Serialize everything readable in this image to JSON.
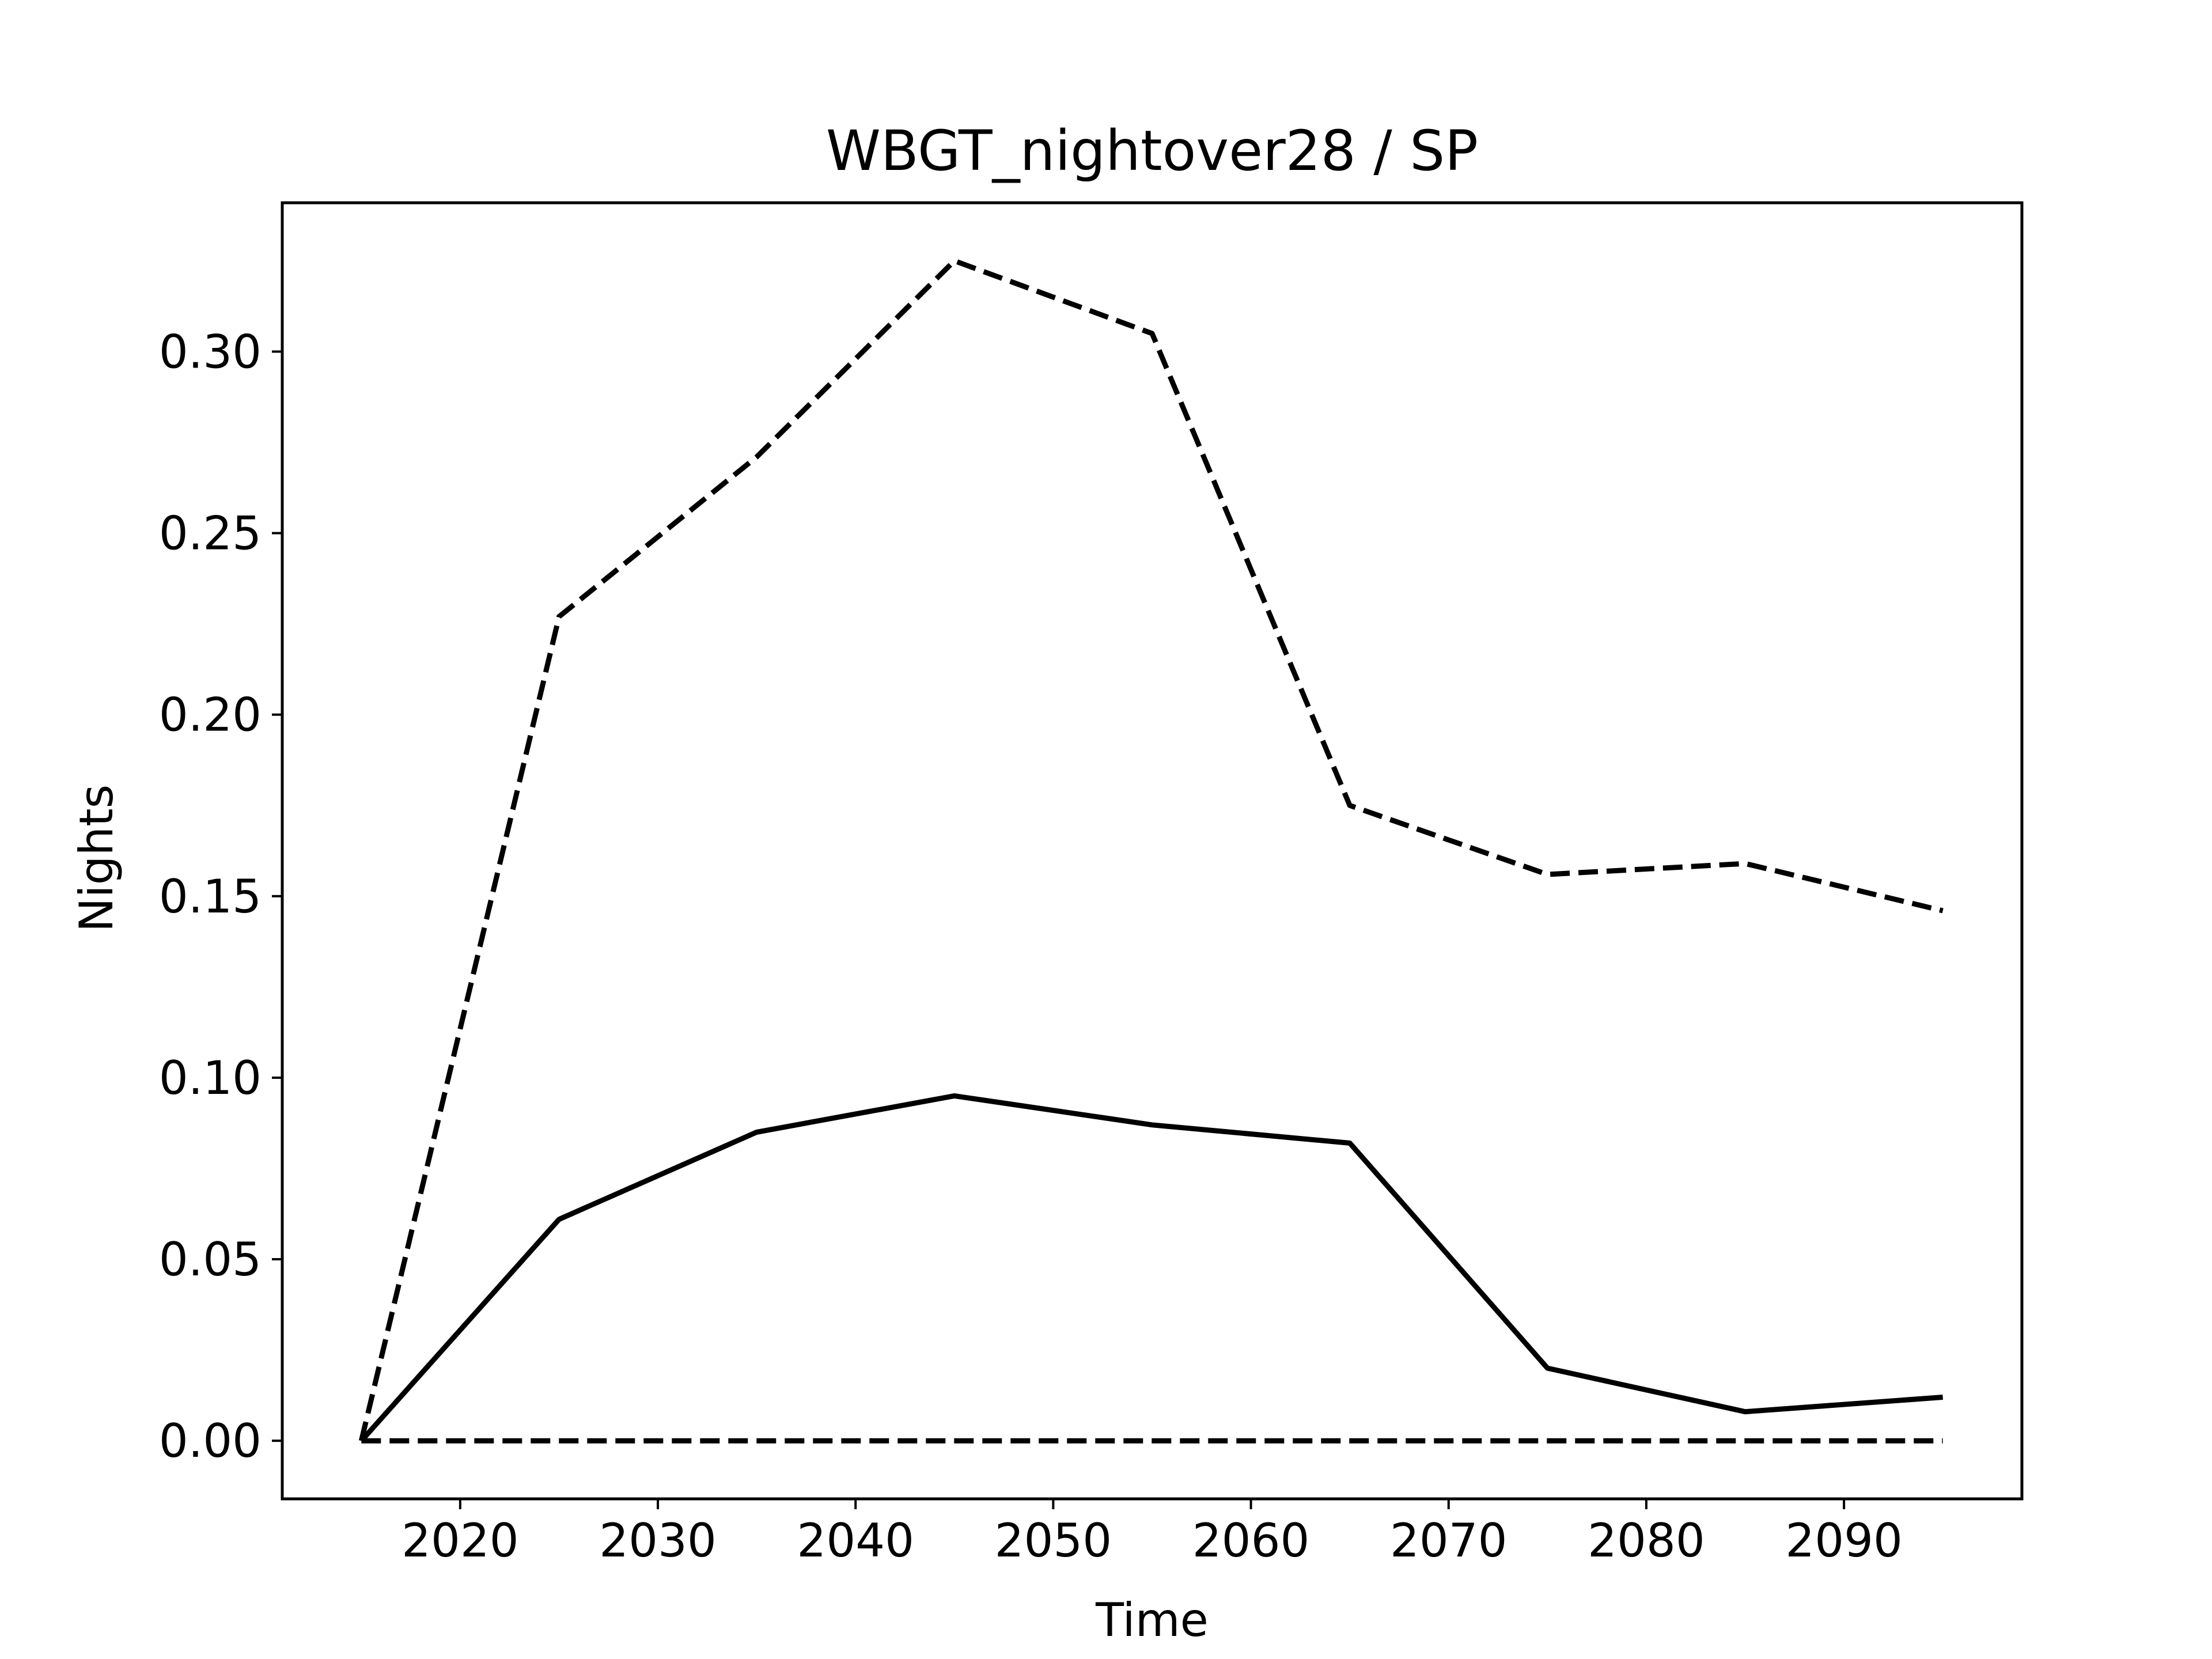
{
  "chart_data": {
    "type": "line",
    "title": "WBGT_nightover28 / SP",
    "xlabel": "Time",
    "ylabel": "Nights",
    "xlim": [
      2011,
      2099
    ],
    "ylim": [
      -0.016,
      0.341
    ],
    "xticks": [
      "2020",
      "2030",
      "2040",
      "2050",
      "2060",
      "2070",
      "2080",
      "2090"
    ],
    "yticks": [
      "0.00",
      "0.05",
      "0.10",
      "0.15",
      "0.20",
      "0.25",
      "0.30"
    ],
    "grid": false,
    "legend": "none",
    "x": [
      2015,
      2025,
      2035,
      2045,
      2055,
      2065,
      2075,
      2085,
      2095
    ],
    "series": [
      {
        "style": "solid",
        "values": [
          0.0,
          0.061,
          0.085,
          0.095,
          0.087,
          0.082,
          0.02,
          0.008,
          0.012
        ]
      },
      {
        "style": "dashed",
        "values": [
          0.0,
          0.227,
          0.271,
          0.325,
          0.305,
          0.175,
          0.156,
          0.159,
          0.146
        ]
      },
      {
        "style": "dashed",
        "values": [
          0.0,
          0.0,
          0.0,
          0.0,
          0.0,
          0.0,
          0.0,
          0.0,
          0.0
        ]
      }
    ],
    "color": "#000000"
  }
}
